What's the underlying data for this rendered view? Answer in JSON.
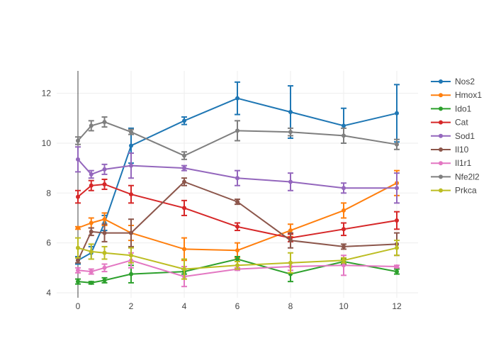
{
  "chart_data": {
    "type": "line",
    "title": "",
    "xlabel": "",
    "ylabel": "",
    "x": [
      0,
      0.5,
      1,
      2,
      4,
      6,
      8,
      10,
      12
    ],
    "xlim": [
      -0.8,
      12.8
    ],
    "ylim": [
      3.8,
      12.9
    ],
    "xticks": [
      0,
      2,
      4,
      6,
      8,
      10,
      12
    ],
    "yticks": [
      4,
      6,
      8,
      10,
      12
    ],
    "grid": true,
    "legend_position": "right",
    "series": [
      {
        "name": "Nos2",
        "color": "#1f77b4",
        "values": [
          5.3,
          5.6,
          6.8,
          9.9,
          10.9,
          11.8,
          11.25,
          10.7,
          11.2
        ],
        "errors": [
          0.15,
          0.25,
          0.3,
          0.7,
          0.15,
          0.65,
          1.05,
          0.7,
          1.15
        ]
      },
      {
        "name": "Hmox1",
        "color": "#ff7f0e",
        "values": [
          6.6,
          6.8,
          6.95,
          6.4,
          5.75,
          5.7,
          6.5,
          7.3,
          8.4
        ],
        "errors": [
          0.05,
          0.2,
          0.25,
          0.3,
          0.45,
          0.3,
          0.25,
          0.3,
          0.5
        ]
      },
      {
        "name": "Ido1",
        "color": "#2ca02c",
        "values": [
          4.45,
          4.4,
          4.5,
          4.75,
          4.85,
          5.35,
          4.75,
          5.25,
          4.85
        ],
        "errors": [
          0.1,
          0.05,
          0.1,
          0.35,
          0.1,
          0.1,
          0.3,
          0.1,
          0.1
        ]
      },
      {
        "name": "Cat",
        "color": "#d62728",
        "values": [
          7.85,
          8.3,
          8.35,
          7.95,
          7.4,
          6.65,
          6.2,
          6.55,
          6.9
        ],
        "errors": [
          0.25,
          0.2,
          0.2,
          0.35,
          0.3,
          0.15,
          0.15,
          0.25,
          0.35
        ]
      },
      {
        "name": "Sod1",
        "color": "#9467bd",
        "values": [
          9.35,
          8.75,
          8.95,
          9.1,
          9.0,
          8.6,
          8.45,
          8.2,
          8.2
        ],
        "errors": [
          0.5,
          0.15,
          0.2,
          0.5,
          0.1,
          0.3,
          0.35,
          0.2,
          0.6
        ]
      },
      {
        "name": "Il10",
        "color": "#8c564b",
        "values": [
          5.3,
          6.45,
          6.4,
          6.4,
          8.45,
          7.65,
          6.1,
          5.85,
          5.95
        ],
        "errors": [
          0.1,
          0.15,
          0.35,
          0.55,
          0.15,
          0.1,
          0.3,
          0.1,
          0.45
        ]
      },
      {
        "name": "Il1r1",
        "color": "#e377c2",
        "values": [
          4.9,
          4.85,
          5.0,
          5.3,
          4.65,
          4.95,
          5.05,
          5.1,
          5.05
        ],
        "errors": [
          0.1,
          0.1,
          0.15,
          0.3,
          0.4,
          0.05,
          0.15,
          0.4,
          0.05
        ]
      },
      {
        "name": "Nfe2l2",
        "color": "#7f7f7f",
        "values": [
          10.1,
          10.7,
          10.85,
          10.45,
          9.5,
          10.5,
          10.45,
          10.3,
          9.95
        ],
        "errors": [
          0.15,
          0.2,
          0.2,
          0.1,
          0.15,
          0.4,
          0.15,
          0.3,
          0.2
        ]
      },
      {
        "name": "Prkca",
        "color": "#bcbd22",
        "values": [
          5.8,
          5.65,
          5.6,
          5.5,
          4.95,
          5.1,
          5.2,
          5.3,
          5.8
        ],
        "errors": [
          0.4,
          0.3,
          0.25,
          0.3,
          0.4,
          0.15,
          0.4,
          0.1,
          0.3
        ]
      }
    ]
  }
}
